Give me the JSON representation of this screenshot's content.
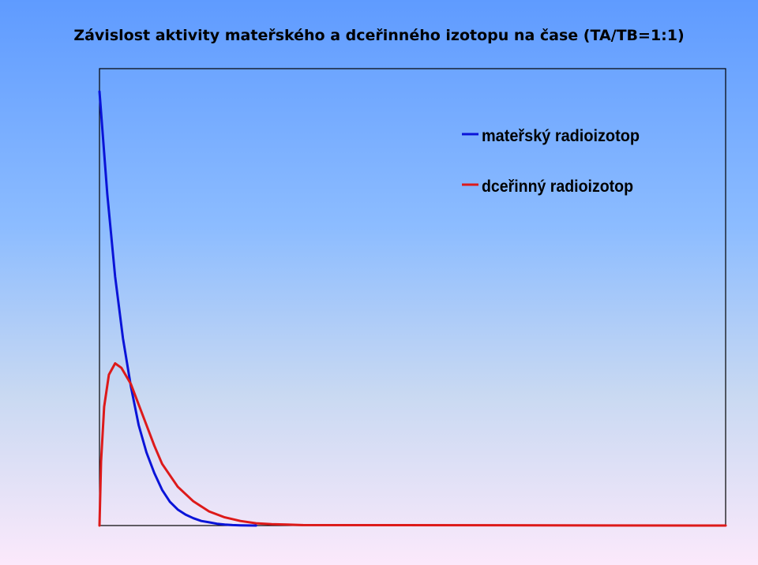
{
  "chart_data": {
    "type": "line",
    "title": "Závislost aktivity mateřského a dceřinného izotopu na čase (TA/TB=1:1)",
    "xlabel": "",
    "ylabel": "",
    "xlim": [
      0,
      20
    ],
    "ylim": [
      0,
      1
    ],
    "grid": false,
    "legend_position": "top-right",
    "series": [
      {
        "name": "mateřský radioizotop",
        "color": "#0a14d8",
        "x": [
          0,
          0.25,
          0.5,
          0.75,
          1,
          1.25,
          1.5,
          1.75,
          2,
          2.25,
          2.5,
          2.75,
          3,
          3.25,
          3.5,
          3.75,
          4,
          4.25,
          4.5,
          4.75,
          5
        ],
        "y": [
          0.95,
          0.725,
          0.545,
          0.41,
          0.305,
          0.22,
          0.16,
          0.115,
          0.078,
          0.052,
          0.035,
          0.024,
          0.016,
          0.01,
          0.007,
          0.004,
          0.002,
          0.001,
          0.0005,
          0.0002,
          0
        ]
      },
      {
        "name": "dceřinný radioizotop",
        "color": "#dd1a1a",
        "x": [
          0,
          0.05,
          0.15,
          0.3,
          0.5,
          0.7,
          1,
          1.25,
          1.5,
          1.75,
          2,
          2.5,
          3,
          3.5,
          4,
          4.5,
          5,
          5.5,
          6,
          6.5,
          20
        ],
        "y": [
          0,
          0.14,
          0.26,
          0.33,
          0.355,
          0.345,
          0.31,
          0.265,
          0.22,
          0.175,
          0.135,
          0.085,
          0.053,
          0.031,
          0.018,
          0.01,
          0.005,
          0.003,
          0.002,
          0.001,
          0
        ]
      }
    ]
  }
}
